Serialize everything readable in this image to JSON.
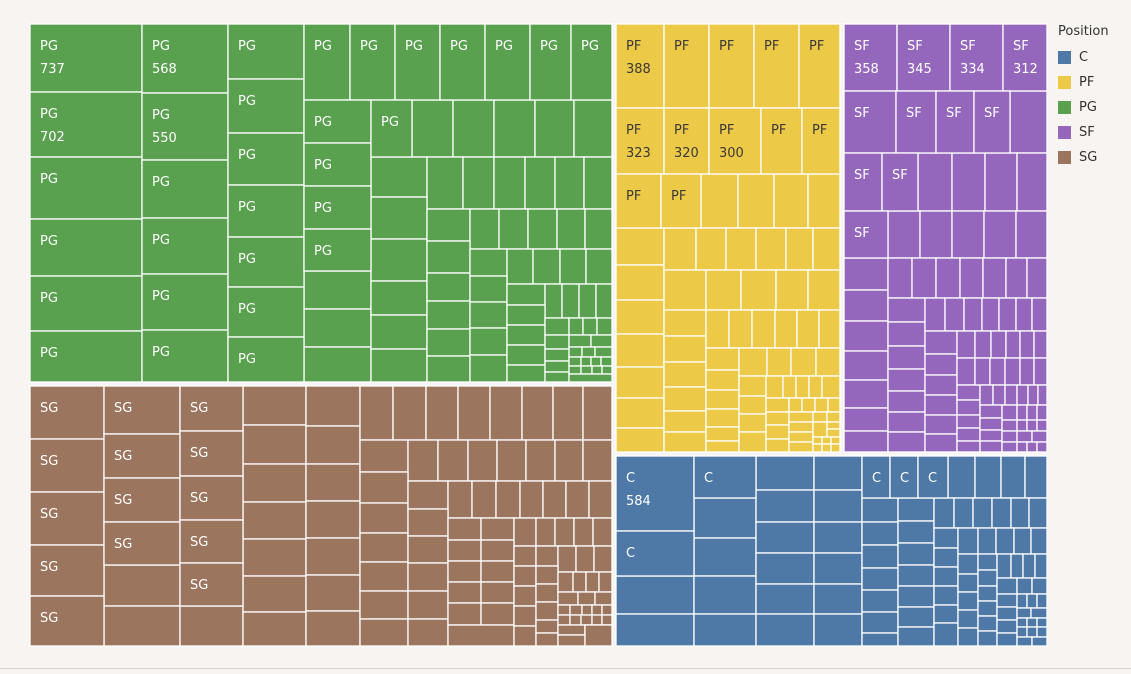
{
  "legend": {
    "title": "Position",
    "items": [
      {
        "label": "C",
        "color": "#4e79a7"
      },
      {
        "label": "PF",
        "color": "#edc948"
      },
      {
        "label": "PG",
        "color": "#59a14f"
      },
      {
        "label": "SF",
        "color": "#9467bd"
      },
      {
        "label": "SG",
        "color": "#9c755f"
      }
    ]
  },
  "chart_data": {
    "type": "treemap",
    "group_field": "Position",
    "groups": [
      {
        "name": "PG",
        "color": "#59a14f",
        "leaves": [
          {
            "label": "PG",
            "value": 737
          },
          {
            "label": "PG",
            "value": 702
          },
          {
            "label": "PG"
          },
          {
            "label": "PG"
          },
          {
            "label": "PG"
          },
          {
            "label": "PG"
          },
          {
            "label": "PG",
            "value": 568
          },
          {
            "label": "PG",
            "value": 550
          },
          {
            "label": "PG"
          },
          {
            "label": "PG"
          },
          {
            "label": "PG"
          },
          {
            "label": "PG"
          },
          {
            "label": "PG"
          },
          {
            "label": "PG"
          },
          {
            "label": "PG"
          },
          {
            "label": "PG"
          },
          {
            "label": "PG"
          },
          {
            "label": "PG"
          },
          {
            "label": "PG"
          },
          {
            "label": "PG"
          },
          {
            "label": "PG"
          },
          {
            "label": "PG"
          },
          {
            "label": "PG"
          },
          {
            "label": "PG"
          },
          {
            "label": "PG"
          },
          {
            "label": "PG"
          },
          {
            "label": "PG"
          },
          {
            "label": "PG"
          },
          {
            "label": "PG"
          },
          {
            "label": "PG"
          },
          {
            "label": "PG"
          }
        ]
      },
      {
        "name": "SG",
        "color": "#9c755f",
        "leaves": [
          {
            "label": "SG"
          },
          {
            "label": "SG"
          },
          {
            "label": "SG"
          },
          {
            "label": "SG"
          },
          {
            "label": "SG"
          },
          {
            "label": "SG"
          },
          {
            "label": "SG"
          },
          {
            "label": "SG"
          },
          {
            "label": "SG"
          },
          {
            "label": "SG"
          },
          {
            "label": "SG"
          },
          {
            "label": "SG"
          },
          {
            "label": "SG"
          },
          {
            "label": "SG"
          }
        ]
      },
      {
        "name": "PF",
        "color": "#edc948",
        "leaves": [
          {
            "label": "PF",
            "value": 388
          },
          {
            "label": "PF"
          },
          {
            "label": "PF"
          },
          {
            "label": "PF"
          },
          {
            "label": "PF"
          },
          {
            "label": "PF",
            "value": 323
          },
          {
            "label": "PF",
            "value": 320
          },
          {
            "label": "PF",
            "value": 300
          },
          {
            "label": "PF"
          },
          {
            "label": "PF"
          },
          {
            "label": "PF"
          },
          {
            "label": "PF"
          }
        ]
      },
      {
        "name": "SF",
        "color": "#9467bd",
        "leaves": [
          {
            "label": "SF",
            "value": 358
          },
          {
            "label": "SF",
            "value": 345
          },
          {
            "label": "SF",
            "value": 334
          },
          {
            "label": "SF",
            "value": 312
          },
          {
            "label": "SF"
          },
          {
            "label": "SF"
          },
          {
            "label": "SF"
          },
          {
            "label": "SF"
          },
          {
            "label": "SF"
          },
          {
            "label": "SF"
          },
          {
            "label": "SF"
          }
        ]
      },
      {
        "name": "C",
        "color": "#4e79a7",
        "leaves": [
          {
            "label": "C",
            "value": 584
          },
          {
            "label": "C"
          },
          {
            "label": "C"
          },
          {
            "label": "C"
          },
          {
            "label": "C"
          },
          {
            "label": "C"
          }
        ]
      }
    ]
  }
}
